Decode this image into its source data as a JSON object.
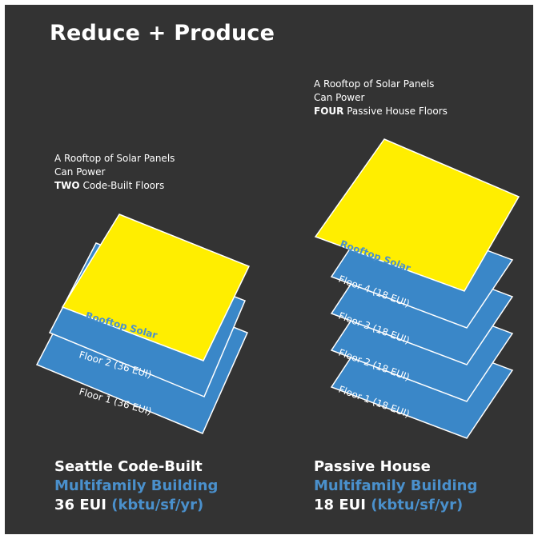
{
  "title": "Reduce + Produce",
  "colors": {
    "background": "#333333",
    "floor_fill": "#3a87c8",
    "solar_fill": "#ffee00",
    "accent_blue": "#4a90cc",
    "text": "#ffffff"
  },
  "code_built": {
    "caption_line1": "A Rooftop of Solar Panels",
    "caption_line2": "Can Power",
    "caption_emph": "TWO",
    "caption_rest": " Code-Built Floors",
    "solar_label": "Rooftop Solar",
    "floors": [
      "Floor 2 (36 EUI)",
      "Floor 1 (36 EUI)"
    ],
    "footer_line1": "Seattle Code-Built",
    "footer_line2": "Multifamily Building",
    "footer_value": "36 EUI",
    "footer_unit": "(kbtu/sf/yr)"
  },
  "passive_house": {
    "caption_line1": "A Rooftop of Solar Panels",
    "caption_line2": "Can Power",
    "caption_emph": "FOUR",
    "caption_rest": " Passive House Floors",
    "solar_label": "Rooftop Solar",
    "floors": [
      "Floor 4 (18 EUI)",
      "Floor 3 (18 EUI)",
      "Floor 2 (18 EUI)",
      "Floor 1 (18 EUI)"
    ],
    "footer_line1": "Passive House",
    "footer_line2": "Multifamily Building",
    "footer_value": "18 EUI",
    "footer_unit": "(kbtu/sf/yr)"
  }
}
